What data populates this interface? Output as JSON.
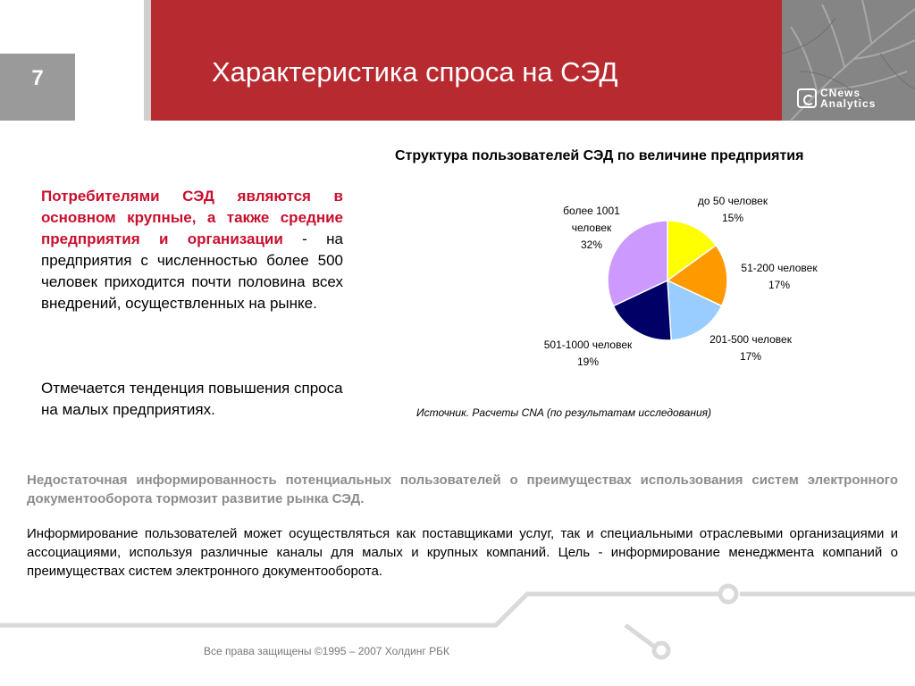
{
  "slide": {
    "number": "7",
    "title": "Характеристика спроса на СЭД",
    "logo": {
      "line1": "CNews",
      "line2": "Analytics"
    }
  },
  "left_text": {
    "p1_highlight": "Потребителями СЭД являются в основном крупные, а также средние предприятия и организации",
    "p1_rest": " - на предприятия с численностью более 500 человек приходится почти половина всех внедрений, осуществленных на рынке.",
    "p2": "Отмечается тенденция повышения спроса на малых предприятиях."
  },
  "chart_data": {
    "type": "pie",
    "title": "Структура пользователей СЭД по величине предприятия",
    "slices": [
      {
        "label": [
          "до 50 человек"
        ],
        "value": 15,
        "color": "#ffff00"
      },
      {
        "label": [
          "51-200 человек"
        ],
        "value": 17,
        "color": "#ff9900"
      },
      {
        "label": [
          "201-500 человек"
        ],
        "value": 17,
        "color": "#99ccff"
      },
      {
        "label": [
          "501-1000 человек"
        ],
        "value": 19,
        "color": "#000066"
      },
      {
        "label": [
          "более 1001",
          "человек"
        ],
        "value": 32,
        "color": "#cc99ff"
      }
    ],
    "value_suffix": "%",
    "source": "Источник. Расчеты CNA (по результатам исследования)"
  },
  "bottom": {
    "note": "Недостаточная информированность потенциальных пользователей о преимуществах использования систем электронного документооборота тормозит развитие рынка СЭД.",
    "info": "Информирование пользователей может осуществляться как поставщиками услуг, так и специальными отраслевыми организациями и ассоциациями, используя различные каналы для малых и крупных компаний. Цель - информирование менеджмента компаний о преимуществах систем электронного документооборота."
  },
  "footer": "Все права защищены ©1995 – 2007 Холдинг РБК",
  "colors": {
    "header_red": "#b72a30",
    "highlight_red": "#c8102e",
    "note_grey": "#8c8c8c"
  }
}
